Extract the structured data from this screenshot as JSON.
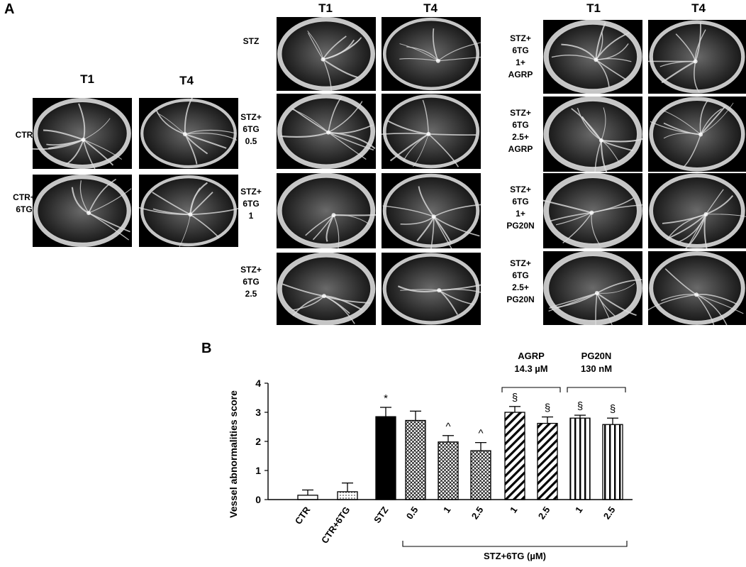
{
  "figure": {
    "panel_a_label": "A",
    "panel_b_label": "B",
    "group1": {
      "col_labels": [
        "T1",
        "T4"
      ],
      "rows": [
        {
          "label_lines": [
            "CTR"
          ]
        },
        {
          "label_lines": [
            "CTR+",
            "6TG"
          ]
        }
      ]
    },
    "group2": {
      "col_labels": [
        "T1",
        "T4"
      ],
      "rows": [
        {
          "label_lines": [
            "STZ"
          ]
        },
        {
          "label_lines": [
            "STZ+",
            "6TG",
            "0.5"
          ]
        },
        {
          "label_lines": [
            "STZ+",
            "6TG",
            "1"
          ]
        },
        {
          "label_lines": [
            "STZ+",
            "6TG",
            "2.5"
          ]
        }
      ]
    },
    "group3": {
      "col_labels": [
        "T1",
        "T4"
      ],
      "rows": [
        {
          "label_lines": [
            "STZ+",
            "6TG",
            "1+",
            "AGRP"
          ]
        },
        {
          "label_lines": [
            "STZ+",
            "6TG",
            "2.5+",
            "AGRP"
          ]
        },
        {
          "label_lines": [
            "STZ+",
            "6TG",
            "1+",
            "PG20N"
          ]
        },
        {
          "label_lines": [
            "STZ+",
            "6TG",
            "2.5+",
            "PG20N"
          ]
        }
      ]
    }
  },
  "chart_data": {
    "type": "bar",
    "ylabel": "Vessel abnormalities score",
    "ylim": [
      0,
      4
    ],
    "yticks": [
      0,
      1,
      2,
      3,
      4
    ],
    "categories": [
      "CTR",
      "CTR+6TG",
      "STZ",
      "0.5",
      "1",
      "2.5",
      "1",
      "2.5",
      "1",
      "2.5"
    ],
    "values": [
      0.15,
      0.27,
      2.85,
      2.72,
      1.98,
      1.68,
      3.0,
      2.62,
      2.8,
      2.58
    ],
    "errors": [
      0.18,
      0.3,
      0.32,
      0.32,
      0.22,
      0.28,
      0.2,
      0.22,
      0.1,
      0.22
    ],
    "annotations": [
      "",
      "",
      "*",
      "",
      "^",
      "^",
      "§",
      "§",
      "§",
      "§"
    ],
    "bracket_bottom_label": "STZ+6TG (µM)",
    "group_labels": [
      {
        "name": "AGRP",
        "conc": "14.3 µM"
      },
      {
        "name": "PG20N",
        "conc": "130 nM"
      }
    ],
    "patterns": [
      "open",
      "dotted",
      "solid",
      "crosshatch",
      "crosshatch",
      "crosshatch",
      "diag",
      "diag",
      "vertical",
      "vertical"
    ],
    "grid": false
  }
}
